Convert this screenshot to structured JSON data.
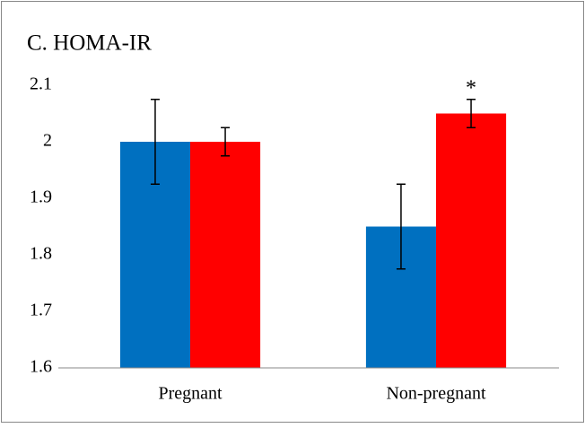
{
  "chart_data": {
    "type": "bar",
    "title": "C. HOMA-IR",
    "categories": [
      "Pregnant",
      "Non-pregnant"
    ],
    "series": [
      {
        "color": "#0070c0",
        "values": [
          2,
          1.85
        ],
        "errors": [
          0.075,
          0.075
        ]
      },
      {
        "color": "#ff0000",
        "values": [
          2,
          2.05
        ],
        "errors": [
          0.025,
          0.025
        ]
      }
    ],
    "annotations": [
      "*"
    ],
    "ylim": [
      1.6,
      2.1
    ],
    "yticks": [
      1.6,
      1.7,
      1.8,
      1.9,
      2,
      2.1
    ],
    "grid": false
  }
}
